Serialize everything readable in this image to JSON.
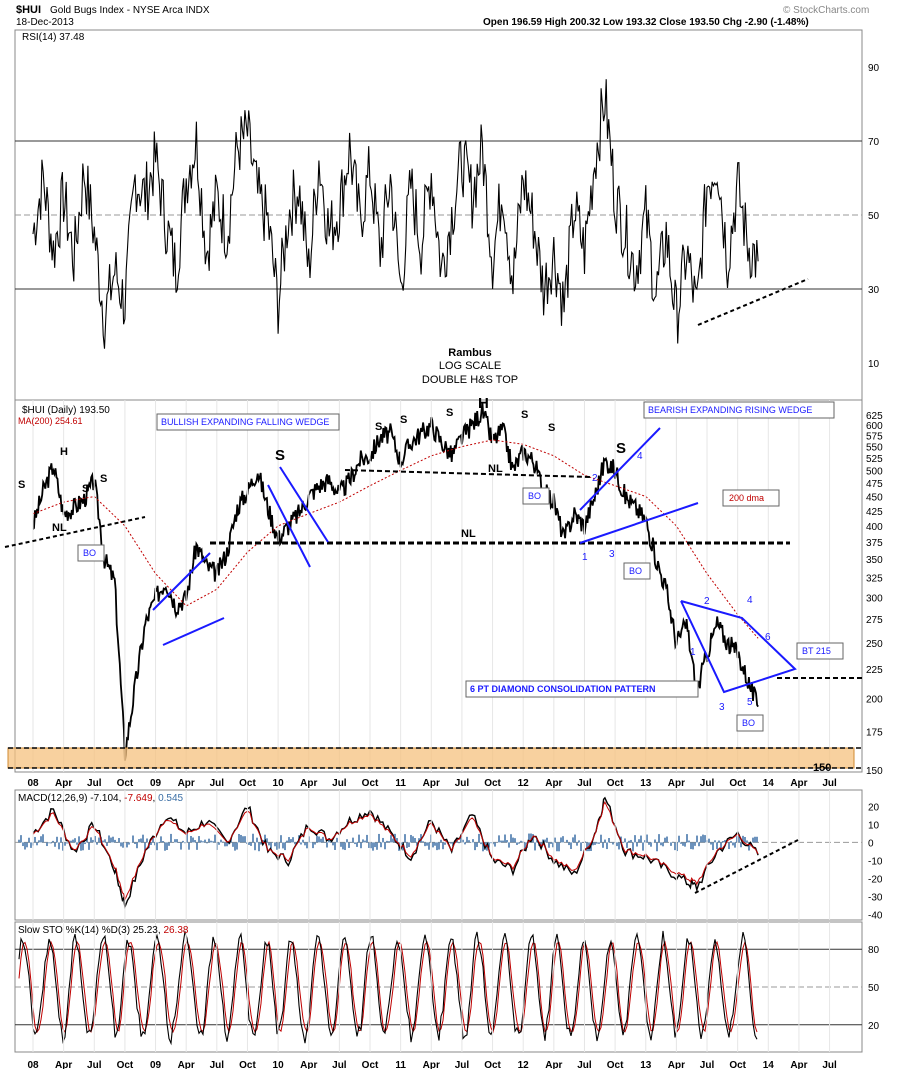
{
  "header": {
    "symbol": "$HUI",
    "name": "Gold Bugs Index - NYSE Arca INDX",
    "date": "18-Dec-2013",
    "watermark": "© StockCharts.com",
    "quote": "Open 196.59  High 200.32  Low 193.32  Close 193.50  Chg -2.90 (-1.48%)"
  },
  "x_axis_labels": [
    "08",
    "Apr",
    "Jul",
    "Oct",
    "09",
    "Apr",
    "Jul",
    "Oct",
    "10",
    "Apr",
    "Jul",
    "Oct",
    "11",
    "Apr",
    "Jul",
    "Oct",
    "12",
    "Apr",
    "Jul",
    "Oct",
    "13",
    "Apr",
    "Jul",
    "Oct",
    "14",
    "Apr",
    "Jul"
  ],
  "chart_data": [
    {
      "type": "line",
      "panel": "rsi",
      "label": "RSI(14) 37.48",
      "ylim": [
        0,
        100
      ],
      "yticks": [
        10,
        30,
        50,
        70,
        90
      ],
      "reference_lines": [
        30,
        50,
        70
      ],
      "last_value": 37.48,
      "annotation": "rising dashed support line connecting 2013 lows",
      "x_range": [
        "2008-01",
        "2013-12"
      ],
      "approx_path": [
        [
          "2008-01",
          45
        ],
        [
          "2008-02",
          60
        ],
        [
          "2008-03",
          40
        ],
        [
          "2008-04",
          55
        ],
        [
          "2008-05",
          38
        ],
        [
          "2008-06",
          62
        ],
        [
          "2008-07",
          45
        ],
        [
          "2008-08",
          22
        ],
        [
          "2008-09",
          35
        ],
        [
          "2008-10",
          26
        ],
        [
          "2008-11",
          60
        ],
        [
          "2008-12",
          55
        ],
        [
          "2009-01",
          65
        ],
        [
          "2009-02",
          48
        ],
        [
          "2009-03",
          35
        ],
        [
          "2009-04",
          60
        ],
        [
          "2009-05",
          70
        ],
        [
          "2009-06",
          40
        ],
        [
          "2009-07",
          55
        ],
        [
          "2009-08",
          45
        ],
        [
          "2009-09",
          68
        ],
        [
          "2009-10",
          72
        ],
        [
          "2009-11",
          55
        ],
        [
          "2009-12",
          48
        ],
        [
          "2010-01",
          26
        ],
        [
          "2010-02",
          50
        ],
        [
          "2010-03",
          58
        ],
        [
          "2010-04",
          35
        ],
        [
          "2010-05",
          65
        ],
        [
          "2010-06",
          45
        ],
        [
          "2010-07",
          52
        ],
        [
          "2010-08",
          68
        ],
        [
          "2010-09",
          48
        ],
        [
          "2010-10",
          62
        ],
        [
          "2010-11",
          40
        ],
        [
          "2010-12",
          60
        ],
        [
          "2011-01",
          30
        ],
        [
          "2011-02",
          58
        ],
        [
          "2011-03",
          42
        ],
        [
          "2011-04",
          62
        ],
        [
          "2011-05",
          35
        ],
        [
          "2011-06",
          50
        ],
        [
          "2011-07",
          65
        ],
        [
          "2011-08",
          55
        ],
        [
          "2011-09",
          68
        ],
        [
          "2011-10",
          38
        ],
        [
          "2011-11",
          58
        ],
        [
          "2011-12",
          32
        ],
        [
          "2012-01",
          60
        ],
        [
          "2012-02",
          48
        ],
        [
          "2012-03",
          30
        ],
        [
          "2012-04",
          40
        ],
        [
          "2012-05",
          25
        ],
        [
          "2012-06",
          52
        ],
        [
          "2012-07",
          40
        ],
        [
          "2012-08",
          65
        ],
        [
          "2012-09",
          82
        ],
        [
          "2012-10",
          55
        ],
        [
          "2012-11",
          45
        ],
        [
          "2012-12",
          35
        ],
        [
          "2013-01",
          50
        ],
        [
          "2013-02",
          28
        ],
        [
          "2013-03",
          45
        ],
        [
          "2013-04",
          22
        ],
        [
          "2013-05",
          40
        ],
        [
          "2013-06",
          24
        ],
        [
          "2013-07",
          58
        ],
        [
          "2013-08",
          65
        ],
        [
          "2013-09",
          38
        ],
        [
          "2013-10",
          58
        ],
        [
          "2013-11",
          42
        ],
        [
          "2013-12",
          37.48
        ]
      ]
    },
    {
      "type": "line",
      "panel": "price",
      "title": "Rambus LOG SCALE DOUBLE H&S TOP",
      "label": "$HUI (Daily) 193.50",
      "ma_label": "MA(200) 254.61",
      "scale": "log",
      "ylim": [
        150,
        650
      ],
      "yticks": [
        150,
        175,
        200,
        225,
        250,
        275,
        300,
        325,
        350,
        375,
        400,
        425,
        450,
        475,
        500,
        525,
        550,
        575,
        600,
        625
      ],
      "last_value": 193.5,
      "ma_last_value": 254.61,
      "series": [
        {
          "name": "$HUI",
          "points": [
            [
              "2008-01",
              400
            ],
            [
              "2008-02",
              460
            ],
            [
              "2008-03",
              510
            ],
            [
              "2008-04",
              420
            ],
            [
              "2008-05",
              430
            ],
            [
              "2008-06",
              445
            ],
            [
              "2008-07",
              480
            ],
            [
              "2008-08",
              350
            ],
            [
              "2008-09",
              320
            ],
            [
              "2008-10",
              160
            ],
            [
              "2008-11",
              210
            ],
            [
              "2008-12",
              270
            ],
            [
              "2009-01",
              300
            ],
            [
              "2009-02",
              320
            ],
            [
              "2009-03",
              290
            ],
            [
              "2009-04",
              300
            ],
            [
              "2009-05",
              370
            ],
            [
              "2009-06",
              340
            ],
            [
              "2009-07",
              330
            ],
            [
              "2009-08",
              360
            ],
            [
              "2009-09",
              430
            ],
            [
              "2009-10",
              460
            ],
            [
              "2009-11",
              500
            ],
            [
              "2009-12",
              430
            ],
            [
              "2010-01",
              380
            ],
            [
              "2010-02",
              400
            ],
            [
              "2010-03",
              420
            ],
            [
              "2010-04",
              450
            ],
            [
              "2010-05",
              470
            ],
            [
              "2010-06",
              480
            ],
            [
              "2010-07",
              455
            ],
            [
              "2010-08",
              480
            ],
            [
              "2010-09",
              520
            ],
            [
              "2010-10",
              530
            ],
            [
              "2010-11",
              570
            ],
            [
              "2010-12",
              580
            ],
            [
              "2011-01",
              520
            ],
            [
              "2011-02",
              560
            ],
            [
              "2011-03",
              580
            ],
            [
              "2011-04",
              600
            ],
            [
              "2011-05",
              560
            ],
            [
              "2011-06",
              530
            ],
            [
              "2011-07",
              570
            ],
            [
              "2011-08",
              600
            ],
            [
              "2011-09",
              635
            ],
            [
              "2011-10",
              560
            ],
            [
              "2011-11",
              590
            ],
            [
              "2011-12",
              500
            ],
            [
              "2012-01",
              540
            ],
            [
              "2012-02",
              520
            ],
            [
              "2012-03",
              460
            ],
            [
              "2012-04",
              440
            ],
            [
              "2012-05",
              380
            ],
            [
              "2012-06",
              420
            ],
            [
              "2012-07",
              400
            ],
            [
              "2012-08",
              450
            ],
            [
              "2012-09",
              520
            ],
            [
              "2012-10",
              500
            ],
            [
              "2012-11",
              450
            ],
            [
              "2012-12",
              430
            ],
            [
              "2013-01",
              410
            ],
            [
              "2013-02",
              350
            ],
            [
              "2013-03",
              310
            ],
            [
              "2013-04",
              250
            ],
            [
              "2013-05",
              270
            ],
            [
              "2013-06",
              205
            ],
            [
              "2013-07",
              240
            ],
            [
              "2013-08",
              270
            ],
            [
              "2013-09",
              250
            ],
            [
              "2013-10",
              240
            ],
            [
              "2013-11",
              215
            ],
            [
              "2013-12",
              193.5
            ]
          ]
        },
        {
          "name": "MA(200)",
          "points": [
            [
              "2008-01",
              420
            ],
            [
              "2008-04",
              440
            ],
            [
              "2008-07",
              450
            ],
            [
              "2008-10",
              400
            ],
            [
              "2009-01",
              330
            ],
            [
              "2009-04",
              290
            ],
            [
              "2009-07",
              310
            ],
            [
              "2009-10",
              360
            ],
            [
              "2010-01",
              400
            ],
            [
              "2010-04",
              420
            ],
            [
              "2010-07",
              440
            ],
            [
              "2010-10",
              470
            ],
            [
              "2011-01",
              500
            ],
            [
              "2011-04",
              530
            ],
            [
              "2011-07",
              550
            ],
            [
              "2011-10",
              565
            ],
            [
              "2012-01",
              555
            ],
            [
              "2012-04",
              530
            ],
            [
              "2012-07",
              490
            ],
            [
              "2012-10",
              470
            ],
            [
              "2013-01",
              450
            ],
            [
              "2013-04",
              400
            ],
            [
              "2013-07",
              330
            ],
            [
              "2013-10",
              280
            ],
            [
              "2013-12",
              254.61
            ]
          ]
        }
      ],
      "annotations": [
        {
          "text": "BULLISH EXPANDING FALLING WEDGE",
          "kind": "box"
        },
        {
          "text": "BEARISH EXPANDING RISING WEDGE",
          "kind": "box"
        },
        {
          "text": "200 dma",
          "kind": "box-red"
        },
        {
          "text": "6 PT DIAMOND CONSOLIDATION PATTERN",
          "kind": "box"
        },
        {
          "text": "BT 215",
          "kind": "box"
        },
        {
          "text": "BO",
          "kind": "box"
        },
        {
          "text": "NL",
          "kind": "label"
        },
        {
          "text": "H",
          "kind": "label"
        },
        {
          "text": "S",
          "kind": "label"
        },
        {
          "text": "150",
          "kind": "label"
        }
      ],
      "diamond_points": [
        "1",
        "2",
        "3",
        "4",
        "5",
        "6"
      ],
      "wedge_points": [
        "1",
        "2",
        "3",
        "4"
      ],
      "neckline_level": 375,
      "support_zone": [
        150,
        165
      ]
    },
    {
      "type": "line",
      "panel": "macd",
      "label": "MACD(12,26,9) -7.104, -7.649, 0.545",
      "label_parts": [
        "MACD(12,26,9) -7.104, ",
        "-7.649",
        ", ",
        "0.545"
      ],
      "yticks": [
        -40,
        -30,
        -20,
        -10,
        0,
        10,
        20
      ],
      "ylim": [
        -42,
        28
      ],
      "series": [
        {
          "name": "MACD",
          "last_value": -7.104
        },
        {
          "name": "Signal",
          "last_value": -7.649
        },
        {
          "name": "Histogram",
          "last_value": 0.545
        }
      ],
      "approx_path": [
        [
          "2008-01",
          5
        ],
        [
          "2008-03",
          18
        ],
        [
          "2008-05",
          -5
        ],
        [
          "2008-07",
          10
        ],
        [
          "2008-09",
          -15
        ],
        [
          "2008-10",
          -35
        ],
        [
          "2008-12",
          -5
        ],
        [
          "2009-02",
          15
        ],
        [
          "2009-04",
          5
        ],
        [
          "2009-06",
          12
        ],
        [
          "2009-08",
          0
        ],
        [
          "2009-10",
          20
        ],
        [
          "2009-12",
          -5
        ],
        [
          "2010-02",
          -10
        ],
        [
          "2010-04",
          10
        ],
        [
          "2010-06",
          2
        ],
        [
          "2010-08",
          12
        ],
        [
          "2010-10",
          18
        ],
        [
          "2010-12",
          5
        ],
        [
          "2011-02",
          -8
        ],
        [
          "2011-04",
          12
        ],
        [
          "2011-06",
          -5
        ],
        [
          "2011-08",
          15
        ],
        [
          "2011-10",
          -10
        ],
        [
          "2011-12",
          -15
        ],
        [
          "2012-02",
          5
        ],
        [
          "2012-04",
          -10
        ],
        [
          "2012-06",
          -18
        ],
        [
          "2012-08",
          5
        ],
        [
          "2012-09",
          25
        ],
        [
          "2012-11",
          -5
        ],
        [
          "2013-01",
          -8
        ],
        [
          "2013-03",
          -15
        ],
        [
          "2013-05",
          -22
        ],
        [
          "2013-06",
          -25
        ],
        [
          "2013-08",
          -5
        ],
        [
          "2013-10",
          5
        ],
        [
          "2013-12",
          -7.104
        ]
      ]
    },
    {
      "type": "line",
      "panel": "stochastic",
      "label": "Slow STO %K(14) %D(3) 25.23, 26.38",
      "label_parts": [
        "Slow STO %K(14) %D(3) 25.23, ",
        "26.38"
      ],
      "ylim": [
        0,
        100
      ],
      "yticks": [
        20,
        50,
        80
      ],
      "series": [
        {
          "name": "%K",
          "last_value": 25.23
        },
        {
          "name": "%D",
          "last_value": 26.38
        }
      ],
      "oscillating": "between ~5 and ~95 throughout 2008-2013"
    }
  ]
}
